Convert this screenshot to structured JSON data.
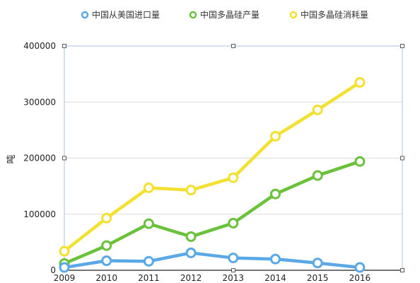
{
  "chart_data": {
    "type": "line",
    "title": "",
    "xlabel": "",
    "ylabel": "吨",
    "categories": [
      "2009",
      "2010",
      "2011",
      "2012",
      "2013",
      "2014",
      "2015",
      "2016"
    ],
    "ylim": [
      0,
      400000
    ],
    "yticks": [
      "0",
      "100000",
      "200000",
      "300000",
      "400000"
    ],
    "grid": true,
    "legend_position": "top",
    "series": [
      {
        "name": "中国从美国进口量",
        "color": "#5aa9e6",
        "values": [
          5000,
          17000,
          16000,
          31000,
          22000,
          20000,
          13000,
          5000
        ]
      },
      {
        "name": "中国多晶硅产量",
        "color": "#6ac13a",
        "values": [
          12000,
          44000,
          83000,
          60000,
          84000,
          136000,
          169000,
          194000
        ]
      },
      {
        "name": "中国多晶硅消耗量",
        "color": "#f4e030",
        "values": [
          34000,
          93000,
          147000,
          143000,
          165000,
          239000,
          286000,
          335000
        ]
      }
    ]
  }
}
